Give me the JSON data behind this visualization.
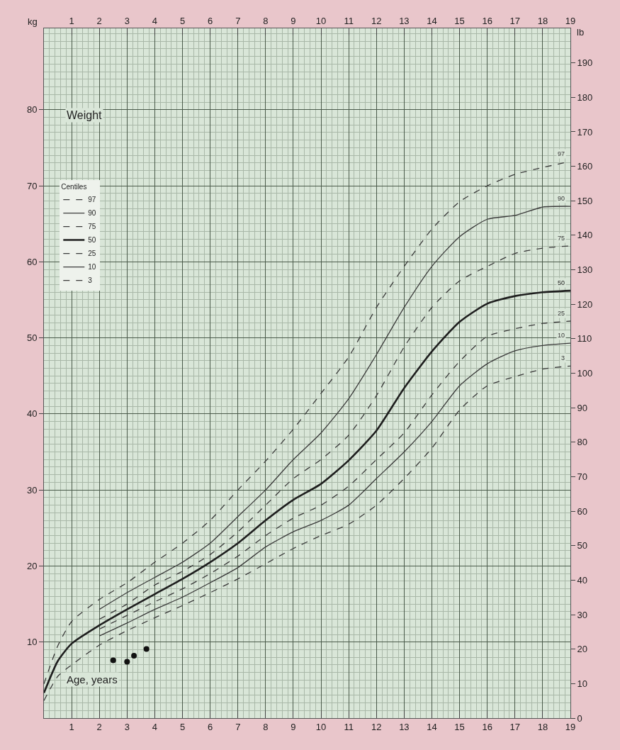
{
  "chart_data": {
    "type": "line",
    "title": "Weight",
    "xlabel": "Age, years",
    "ylabel": "kg",
    "y2label": "lb",
    "legend_title": "Centiles",
    "legend": "top left",
    "grid": true,
    "line_style": "solid",
    "marker": "none",
    "xlim": [
      0,
      19
    ],
    "xticks": [
      1,
      2,
      3,
      4,
      5,
      6,
      7,
      8,
      9,
      10,
      11,
      12,
      13,
      14,
      15,
      16,
      17,
      18,
      19
    ],
    "x2lim": [
      0,
      19
    ],
    "x2ticks": [
      1,
      2,
      3,
      4,
      5,
      6,
      7,
      8,
      9,
      10,
      11,
      12,
      13,
      14,
      15,
      16,
      17,
      18,
      19
    ],
    "ylim": [
      0,
      90.7
    ],
    "yticks": [
      10,
      20,
      30,
      40,
      50,
      60,
      70,
      80
    ],
    "y2lim": [
      0,
      200
    ],
    "y2ticks": [
      0,
      10,
      20,
      30,
      40,
      50,
      60,
      70,
      80,
      90,
      100,
      110,
      120,
      130,
      140,
      150,
      160,
      170,
      180,
      190
    ],
    "series": [
      {
        "name": "97",
        "color": "#3a3a3a",
        "line_style": "dashed",
        "x": [
          0,
          0.5,
          1,
          2,
          3,
          4,
          5,
          6,
          7,
          8,
          9,
          10,
          11,
          12,
          13,
          14,
          15,
          16,
          17,
          18,
          19
        ],
        "values": [
          4.5,
          9.5,
          12.7,
          15.6,
          17.8,
          20.5,
          23,
          26,
          30,
          33.8,
          38,
          42.7,
          47.5,
          54,
          59.4,
          64.3,
          67.9,
          70,
          71.5,
          72.4,
          73.2
        ]
      },
      {
        "name": "90",
        "color": "#3a3a3a",
        "x": [
          2,
          3,
          4,
          5,
          6,
          7,
          8,
          9,
          10,
          11,
          12,
          13,
          14,
          15,
          16,
          17,
          18,
          19
        ],
        "values": [
          14.3,
          16.5,
          18.5,
          20.5,
          23,
          26.5,
          30,
          34,
          37.5,
          42,
          47.8,
          54,
          59.4,
          63.3,
          65.6,
          66.1,
          67.2,
          67.3
        ]
      },
      {
        "name": "75",
        "color": "#3a3a3a",
        "line_style": "dashed",
        "x": [
          2,
          3,
          4,
          5,
          6,
          7,
          8,
          9,
          10,
          11,
          12,
          13,
          14,
          15,
          16,
          17,
          18,
          19
        ],
        "values": [
          13,
          15,
          17.5,
          19.3,
          21.5,
          24.5,
          28,
          31.5,
          34,
          37.2,
          42.4,
          48.8,
          54,
          57.5,
          59.4,
          61.1,
          61.8,
          62.1
        ]
      },
      {
        "name": "50",
        "color": "#1e1e1e",
        "x": [
          0,
          0.5,
          1,
          2,
          3,
          4,
          5,
          6,
          7,
          8,
          9,
          10,
          11,
          12,
          13,
          14,
          15,
          16,
          17,
          18,
          19
        ],
        "values": [
          3.3,
          7.5,
          9.8,
          12.2,
          14.3,
          16.3,
          18.3,
          20.5,
          23,
          26,
          28.7,
          30.8,
          33.9,
          37.8,
          43.4,
          48.2,
          52.1,
          54.5,
          55.5,
          56,
          56.2
        ]
      },
      {
        "name": "25",
        "color": "#3a3a3a",
        "line_style": "dashed",
        "x": [
          2,
          3,
          4,
          5,
          6,
          7,
          8,
          9,
          10,
          11,
          12,
          13,
          14,
          15,
          16,
          17,
          18,
          19
        ],
        "values": [
          11.7,
          13.5,
          15.3,
          17,
          19,
          21.3,
          24,
          26.3,
          28,
          30.5,
          34,
          37.5,
          42.5,
          46.9,
          50.2,
          51.2,
          51.9,
          52.2
        ]
      },
      {
        "name": "10",
        "color": "#3a3a3a",
        "x": [
          2,
          3,
          4,
          5,
          6,
          7,
          8,
          9,
          10,
          11,
          12,
          13,
          14,
          15,
          16,
          17,
          18,
          19
        ],
        "values": [
          10.8,
          12.5,
          14.3,
          15.9,
          17.8,
          19.8,
          22.5,
          24.5,
          26,
          28,
          31.5,
          35,
          39,
          43.7,
          46.6,
          48.3,
          49,
          49.3
        ]
      },
      {
        "name": "3",
        "color": "#3a3a3a",
        "line_style": "dashed",
        "x": [
          0,
          0.5,
          1,
          2,
          3,
          4,
          5,
          6,
          7,
          8,
          9,
          10,
          11,
          12,
          13,
          14,
          15,
          16,
          17,
          18,
          19
        ],
        "values": [
          2.3,
          5.5,
          7,
          9.6,
          11.5,
          13.2,
          14.8,
          16.5,
          18.3,
          20.3,
          22.3,
          24,
          25.5,
          28,
          31.5,
          35.5,
          40.5,
          43.7,
          44.9,
          45.9,
          46.3
        ]
      },
      {
        "type": "scatter",
        "marker": "circle",
        "color": "#111111",
        "x": [
          2.5,
          3.0,
          3.25,
          3.7
        ],
        "values": [
          7.6,
          7.4,
          8.2,
          9.1
        ]
      }
    ]
  }
}
